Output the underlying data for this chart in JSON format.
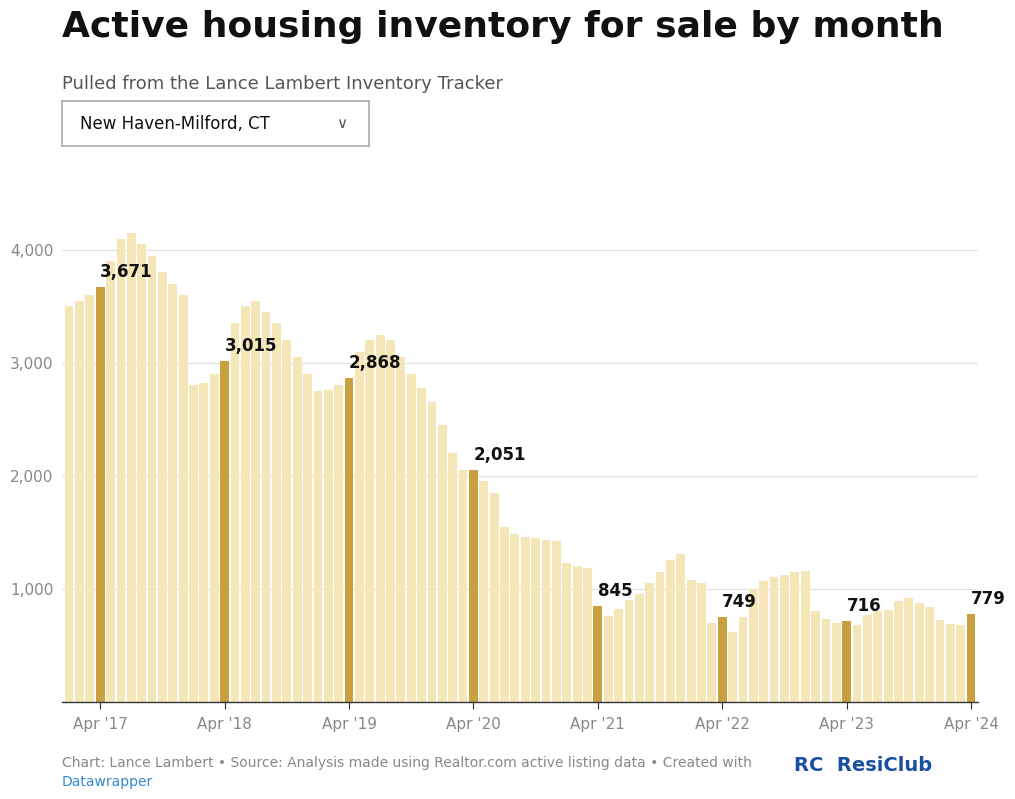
{
  "title": "Active housing inventory for sale by month",
  "subtitle": "Pulled from the Lance Lambert Inventory Tracker",
  "dropdown_label": "New Haven-Milford, CT",
  "footer_text": "Chart: Lance Lambert • Source: Analysis made using Realtor.com active listing data • Created with",
  "footer_link": "Datawrapper",
  "background_color": "#ffffff",
  "bar_color_normal": "#f5e6b8",
  "bar_color_highlight": "#c8a040",
  "annotated_indices": [
    3,
    15,
    27,
    39,
    51,
    63,
    75,
    87
  ],
  "annotated_values": [
    3671,
    3015,
    2868,
    2051,
    845,
    749,
    716,
    779
  ],
  "monthly_values": [
    3500,
    3550,
    3600,
    3671,
    3900,
    4100,
    4150,
    4050,
    3950,
    3800,
    3700,
    3600,
    2800,
    2820,
    2900,
    3015,
    3350,
    3500,
    3550,
    3450,
    3350,
    3200,
    3050,
    2900,
    2750,
    2760,
    2800,
    2868,
    3100,
    3200,
    3250,
    3200,
    3050,
    2900,
    2780,
    2650,
    2450,
    2200,
    2050,
    2051,
    1950,
    1850,
    1550,
    1480,
    1460,
    1450,
    1430,
    1420,
    1230,
    1200,
    1180,
    845,
    760,
    820,
    900,
    950,
    1050,
    1150,
    1250,
    1310,
    1080,
    1050,
    700,
    749,
    620,
    750,
    1000,
    1070,
    1100,
    1120,
    1150,
    1160,
    800,
    730,
    700,
    716,
    680,
    770,
    800,
    810,
    890,
    920,
    870,
    840,
    720,
    690,
    680,
    779
  ],
  "x_tick_labels": [
    "Apr '17",
    "Apr '18",
    "Apr '19",
    "Apr '20",
    "Apr '21",
    "Apr '22",
    "Apr '23",
    "Apr '24"
  ],
  "x_tick_positions": [
    3,
    15,
    27,
    39,
    51,
    63,
    75,
    87
  ],
  "y_ticks": [
    1000,
    2000,
    3000,
    4000
  ],
  "ylim": [
    0,
    4500
  ],
  "grid_color": "#e0e0e0",
  "axis_color": "#333333",
  "tick_label_color": "#888888",
  "annotation_font_size": 12,
  "title_font_size": 26,
  "subtitle_font_size": 13,
  "footer_font_size": 10
}
